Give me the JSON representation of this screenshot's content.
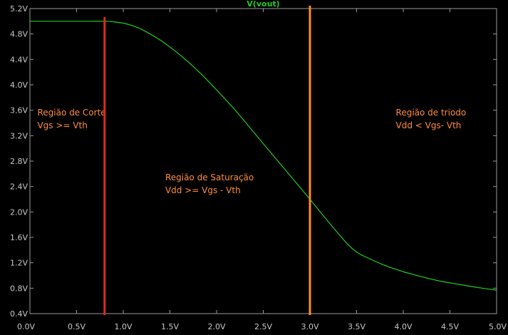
{
  "chart_data": {
    "type": "line",
    "title": "V(vout)",
    "xlabel": "",
    "ylabel": "",
    "xlim": [
      0,
      5
    ],
    "ylim": [
      0.4,
      5.2
    ],
    "grid": false,
    "x_ticks": [
      {
        "v": 0.0,
        "label": "0.0V"
      },
      {
        "v": 0.5,
        "label": "0.5V"
      },
      {
        "v": 1.0,
        "label": "1.0V"
      },
      {
        "v": 1.5,
        "label": "1.5V"
      },
      {
        "v": 2.0,
        "label": "2.0V"
      },
      {
        "v": 2.5,
        "label": "2.5V"
      },
      {
        "v": 3.0,
        "label": "3.0V"
      },
      {
        "v": 3.5,
        "label": "3.5V"
      },
      {
        "v": 4.0,
        "label": "4.0V"
      },
      {
        "v": 4.5,
        "label": "4.5V"
      },
      {
        "v": 5.0,
        "label": "5.0V"
      }
    ],
    "y_ticks": [
      {
        "v": 5.2,
        "label": "5.2V"
      },
      {
        "v": 4.8,
        "label": "4.8V"
      },
      {
        "v": 4.4,
        "label": "4.4V"
      },
      {
        "v": 4.0,
        "label": "4.0V"
      },
      {
        "v": 3.6,
        "label": "3.6V"
      },
      {
        "v": 3.2,
        "label": "3.2V"
      },
      {
        "v": 2.8,
        "label": "2.8V"
      },
      {
        "v": 2.4,
        "label": "2.4V"
      },
      {
        "v": 2.0,
        "label": "2.0V"
      },
      {
        "v": 1.6,
        "label": "1.6V"
      },
      {
        "v": 1.2,
        "label": "1.2V"
      },
      {
        "v": 0.8,
        "label": "0.8V"
      },
      {
        "v": 0.4,
        "label": "0.4V"
      }
    ],
    "series": [
      {
        "name": "V(vout)",
        "color": "#22cc22",
        "x": [
          0,
          0.5,
          0.8,
          0.9,
          1.0,
          1.1,
          1.2,
          1.4,
          1.6,
          1.8,
          2.0,
          2.2,
          2.4,
          2.6,
          2.8,
          3.0,
          3.2,
          3.4,
          3.5,
          3.6,
          3.8,
          4.0,
          4.2,
          4.4,
          4.6,
          4.8,
          5.0
        ],
        "y": [
          5.0,
          5.0,
          5.0,
          4.99,
          4.97,
          4.93,
          4.87,
          4.7,
          4.48,
          4.22,
          3.92,
          3.6,
          3.25,
          2.9,
          2.55,
          2.2,
          1.84,
          1.5,
          1.37,
          1.29,
          1.16,
          1.06,
          0.98,
          0.91,
          0.86,
          0.81,
          0.77
        ]
      }
    ],
    "markers": [
      {
        "name": "cutoff-marker",
        "x": 0.8,
        "color": "#e02828"
      },
      {
        "name": "triode-marker",
        "x": 3.0,
        "color": "#ff8c28"
      }
    ],
    "annotations": [
      {
        "name": "region-cutoff",
        "x": 0.08,
        "y": 3.52,
        "lines": [
          "Região de Corte",
          "Vgs >= Vth"
        ]
      },
      {
        "name": "region-saturation",
        "x": 1.45,
        "y": 2.5,
        "lines": [
          "Região de Saturação",
          "Vdd >= Vgs - Vth"
        ]
      },
      {
        "name": "region-triode",
        "x": 3.92,
        "y": 3.52,
        "lines": [
          "Região de triodo",
          "Vdd < Vgs- Vth"
        ]
      }
    ],
    "annotation_color": "#ff8c3c",
    "title_color": "#22cc22",
    "axis_color": "#9a9a9a"
  }
}
